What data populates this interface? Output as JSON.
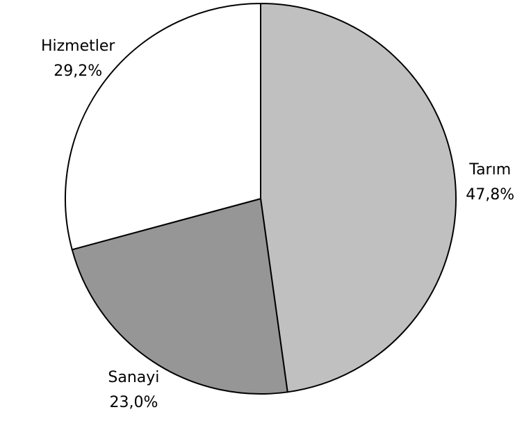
{
  "chart_data": {
    "type": "pie",
    "categories": [
      "Tarım",
      "Sanayi",
      "Hizmetler"
    ],
    "values": [
      47.8,
      23.0,
      29.2
    ],
    "value_labels": [
      "47,8%",
      "23,0%",
      "29,2%"
    ],
    "colors": [
      "#c0c0c0",
      "#969696",
      "#ffffff"
    ]
  }
}
